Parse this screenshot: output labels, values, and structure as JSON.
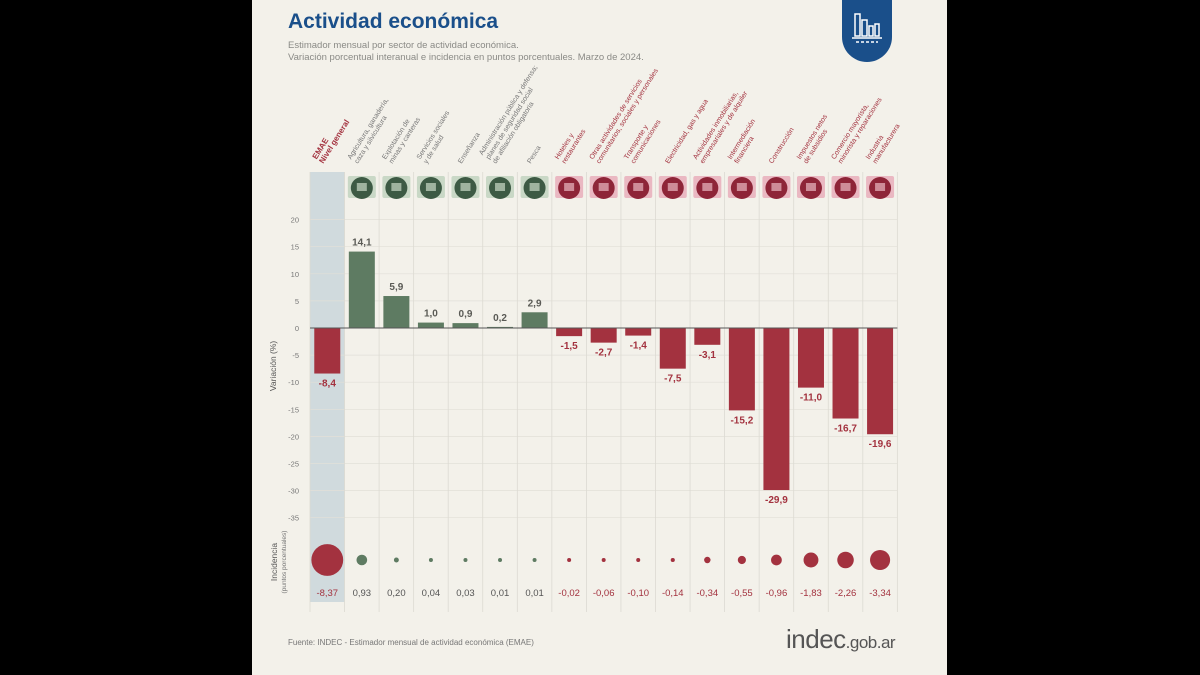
{
  "header": {
    "title": "Actividad económica",
    "subtitle_1": "Estimador mensual por sector de actividad económica.",
    "subtitle_2": "Variación porcentual interanual e incidencia en puntos porcentuales. Marzo de 2024."
  },
  "footer": {
    "source": "Fuente: INDEC - Estimador mensual de actividad económica (EMAE)",
    "logo_main": "indec",
    "logo_suffix": ".gob.ar"
  },
  "colors": {
    "positive": "#5e7b62",
    "negative": "#a3323f",
    "brand": "#1a4f8a",
    "highlight": "#c9d6da"
  },
  "chart_data": {
    "type": "bar",
    "title": "Actividad económica",
    "ylabel": "Variación (%)",
    "ylabel2": "Incidencia",
    "ylabel2_sub": "(puntos porcentuales)",
    "ylim": [
      -35,
      20
    ],
    "yticks": [
      20,
      15,
      10,
      5,
      0,
      -5,
      -10,
      -15,
      -20,
      -25,
      -30,
      -35
    ],
    "categories": [
      [
        "EMAE",
        "Nivel general"
      ],
      [
        "Agricultura, ganadería,",
        "caza y silvicultura"
      ],
      [
        "Explotación de",
        "minas y canteras"
      ],
      [
        "Servicios sociales",
        "y de salud"
      ],
      [
        "Enseñanza"
      ],
      [
        "Administración pública y defensa;",
        "planes de seguridad social",
        "de afiliación obligatoria"
      ],
      [
        "Pesca"
      ],
      [
        "Hoteles y",
        "restaurantes"
      ],
      [
        "Otras actividades de servicios",
        "comunitarios, sociales y personales"
      ],
      [
        "Transporte y",
        "comunicaciones"
      ],
      [
        "Electricidad, gas y agua"
      ],
      [
        "Actividades inmobiliarias,",
        "empresariales y de alquiler"
      ],
      [
        "Intermediación",
        "financiera"
      ],
      [
        "Construcción"
      ],
      [
        "Impuestos netos",
        "de subsidios"
      ],
      [
        "Comercio mayorista,",
        "minorista y reparaciones"
      ],
      [
        "Industria",
        "manufacturera"
      ]
    ],
    "variation": [
      -8.4,
      14.1,
      5.9,
      1.0,
      0.9,
      0.2,
      2.9,
      -1.5,
      -2.7,
      -1.4,
      -7.5,
      -3.1,
      -15.2,
      -29.9,
      -11.0,
      -16.7,
      -19.6
    ],
    "variation_labels": [
      "-8,4",
      "14,1",
      "5,9",
      "1,0",
      "0,9",
      "0,2",
      "2,9",
      "-1,5",
      "-2,7",
      "-1,4",
      "-7,5",
      "-3,1",
      "-15,2",
      "-29,9",
      "-11,0",
      "-16,7",
      "-19,6"
    ],
    "incidence": [
      -8.37,
      0.93,
      0.2,
      0.04,
      0.03,
      0.01,
      0.01,
      -0.02,
      -0.06,
      -0.1,
      -0.14,
      -0.34,
      -0.55,
      -0.96,
      -1.83,
      -2.26,
      -3.34
    ],
    "incidence_labels": [
      "-8,37",
      "0,93",
      "0,20",
      "0,04",
      "0,03",
      "0,01",
      "0,01",
      "-0,02",
      "-0,06",
      "-0,10",
      "-0,14",
      "-0,34",
      "-0,55",
      "-0,96",
      "-1,83",
      "-2,26",
      "-3,34"
    ]
  }
}
